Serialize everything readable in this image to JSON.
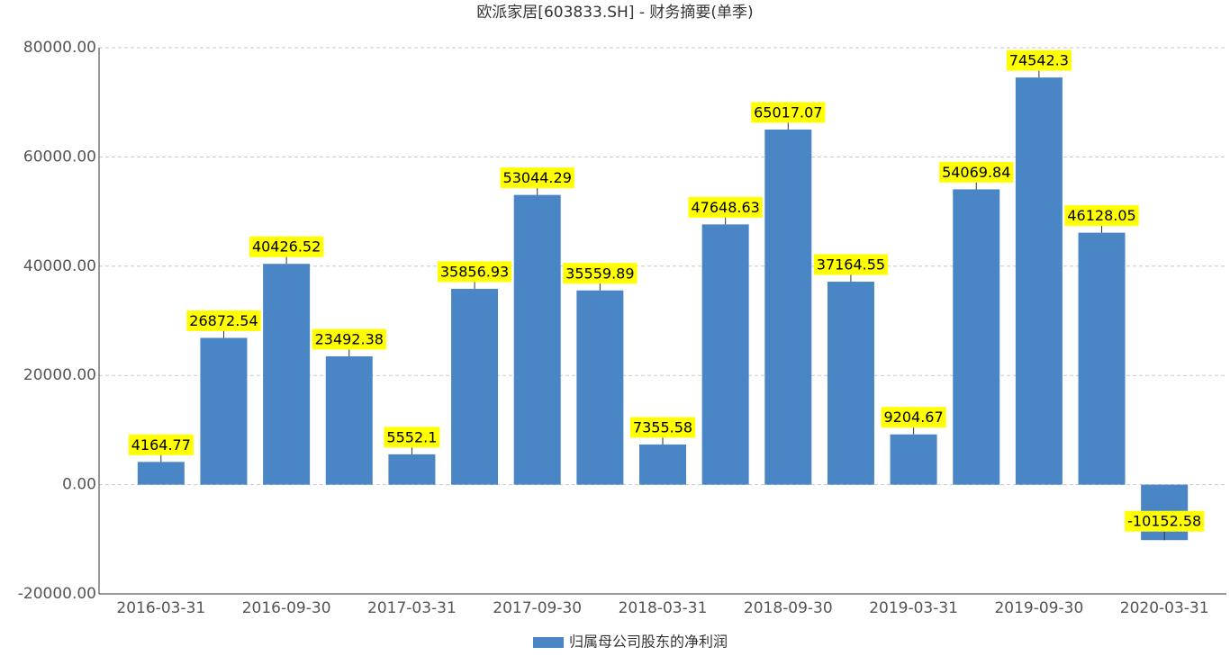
{
  "chart_data": {
    "type": "bar",
    "title": "欧派家居[603833.SH] - 财务摘要(单季)",
    "categories": [
      "2016-03-31",
      null,
      "2016-09-30",
      null,
      "2017-03-31",
      null,
      "2017-09-30",
      null,
      "2018-03-31",
      null,
      "2018-09-30",
      null,
      "2019-03-31",
      null,
      "2019-09-30",
      null,
      "2020-03-31"
    ],
    "series": [
      {
        "name": "归属母公司股东的净利润",
        "color": "#4a86c5",
        "values": [
          4164.77,
          26872.54,
          40426.52,
          23492.38,
          5552.1,
          35856.93,
          53044.29,
          35559.89,
          7355.58,
          47648.63,
          65017.07,
          37164.55,
          9204.67,
          54069.84,
          74542.3,
          46128.05,
          -10152.58
        ]
      }
    ],
    "ylim": [
      -20000,
      80000
    ],
    "yticks": [
      {
        "value": -20000,
        "label": "-20000.00"
      },
      {
        "value": 0,
        "label": "0.00"
      },
      {
        "value": 20000,
        "label": "20000.00"
      },
      {
        "value": 40000,
        "label": "40000.00"
      },
      {
        "value": 60000,
        "label": "60000.00"
      },
      {
        "value": 80000,
        "label": "80000.00"
      }
    ],
    "grid": true,
    "label_background": "#ffff00",
    "legend": "bottom"
  }
}
